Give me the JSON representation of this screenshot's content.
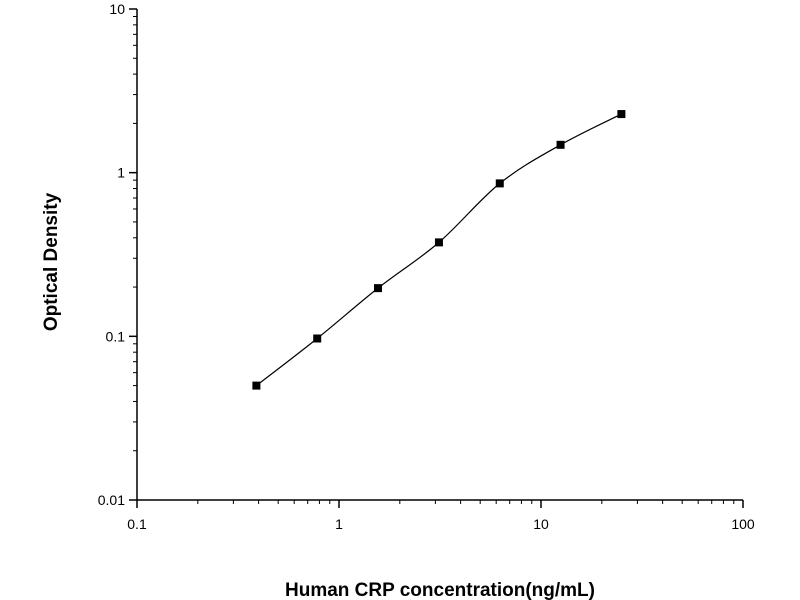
{
  "chart_data": {
    "type": "scatter",
    "title": "",
    "xlabel": "Human CRP concentration(ng/mL)",
    "ylabel": "Optical Density",
    "x_scale": "log",
    "y_scale": "log",
    "xlim": [
      0.1,
      100
    ],
    "ylim": [
      0.01,
      10
    ],
    "x_ticks": [
      {
        "value": 0.1,
        "label": "0.1"
      },
      {
        "value": 1,
        "label": "1"
      },
      {
        "value": 10,
        "label": "10"
      },
      {
        "value": 100,
        "label": "100"
      }
    ],
    "y_ticks": [
      {
        "value": 0.01,
        "label": "0.01"
      },
      {
        "value": 0.1,
        "label": "0.1"
      },
      {
        "value": 1,
        "label": "1"
      },
      {
        "value": 10,
        "label": "10"
      }
    ],
    "grid": false,
    "legend": "none",
    "series": [
      {
        "marker": "square",
        "color": "#000000",
        "fit_line": "smooth",
        "x": [
          0.39,
          0.78,
          1.56,
          3.125,
          6.25,
          12.5,
          25
        ],
        "y": [
          0.05,
          0.097,
          0.197,
          0.375,
          0.86,
          1.48,
          2.28
        ]
      }
    ]
  }
}
